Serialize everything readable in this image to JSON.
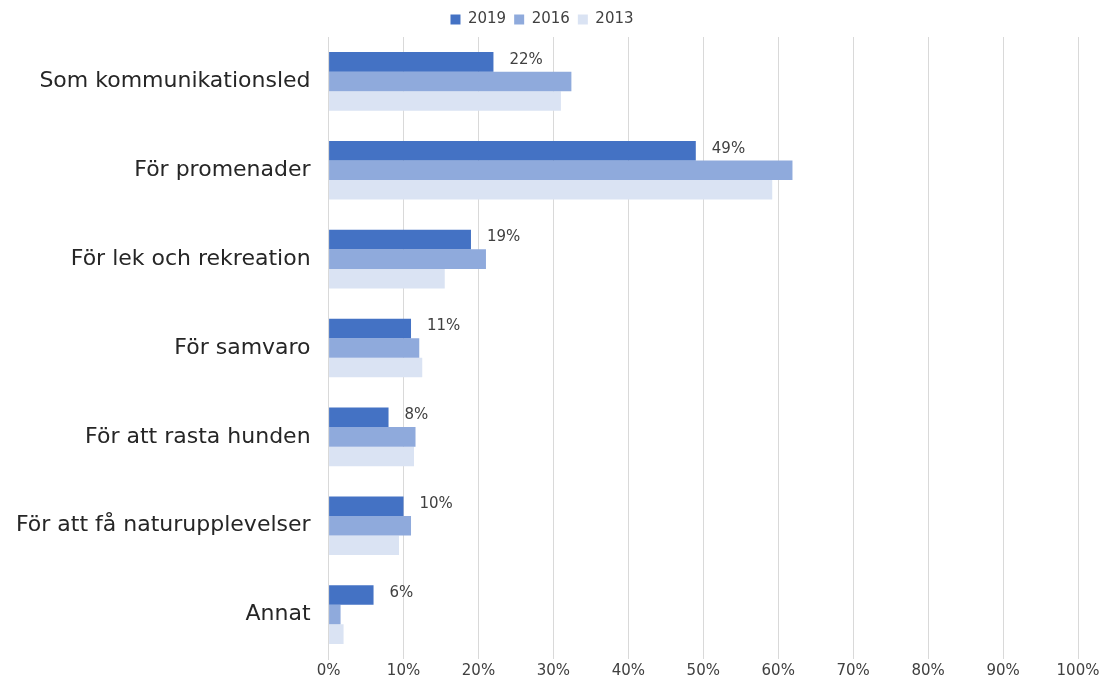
{
  "chart_data": {
    "type": "bar",
    "orientation": "horizontal",
    "categories": [
      "Som kommunikationsled",
      "För promenader",
      "För lek och rekreation",
      "För samvaro",
      "För att rasta hunden",
      "För att få naturupplevelser",
      "Annat"
    ],
    "series": [
      {
        "name": "2019",
        "color": "#4472c4",
        "values": [
          22,
          49,
          19,
          11,
          8,
          10,
          6
        ],
        "value_labels": [
          "22%",
          "49%",
          "19%",
          "11%",
          "8%",
          "10%",
          "6%"
        ]
      },
      {
        "name": "2016",
        "color": "#8faadc",
        "values": [
          32.4,
          61.9,
          21,
          12.1,
          11.6,
          11,
          1.6
        ]
      },
      {
        "name": "2013",
        "color": "#dae3f3",
        "values": [
          31,
          59.2,
          15.5,
          12.5,
          11.4,
          9.4,
          2
        ]
      }
    ],
    "xlim": [
      0,
      100
    ],
    "xticks": [
      {
        "value": 0,
        "label": "0%"
      },
      {
        "value": 10,
        "label": "10%"
      },
      {
        "value": 20,
        "label": "20%"
      },
      {
        "value": 30,
        "label": "30%"
      },
      {
        "value": 40,
        "label": "40%"
      },
      {
        "value": 50,
        "label": "50%"
      },
      {
        "value": 60,
        "label": "60%"
      },
      {
        "value": 70,
        "label": "70%"
      },
      {
        "value": 80,
        "label": "80%"
      },
      {
        "value": 90,
        "label": "90%"
      },
      {
        "value": 100,
        "label": "100%"
      }
    ],
    "grid": "x",
    "legend": "top"
  }
}
